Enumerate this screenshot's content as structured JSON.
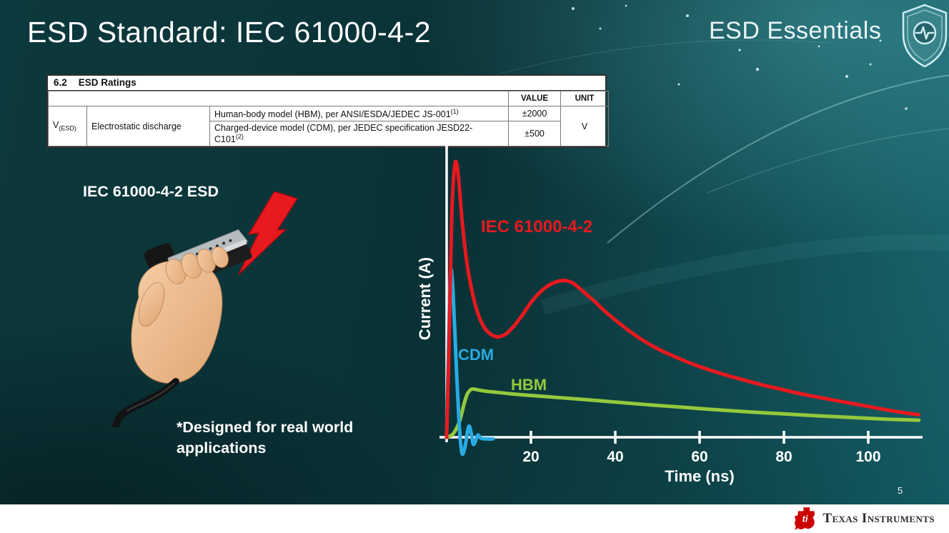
{
  "slide": {
    "title": "ESD Standard: IEC 61000-4-2",
    "series_label": "ESD Essentials",
    "page_number": "5"
  },
  "theme": {
    "background_teal": "#0a3236",
    "accent_teal": "#5fc4cf",
    "title_color": "#ffffff"
  },
  "icons": {
    "header_badge": "shield-with-pulse",
    "footer_logo": "ti-bug",
    "illustration": "hand-holding-hdmi-connector",
    "strike": "red-lightning-bolt"
  },
  "ratings_table": {
    "section_number": "6.2",
    "section_title": "ESD Ratings",
    "value_header": "VALUE",
    "unit_header": "UNIT",
    "symbol_base": "V",
    "symbol_sub": "(ESD)",
    "parameter": "Electrostatic discharge",
    "rows": [
      {
        "desc": "Human-body model (HBM), per ANSI/ESDA/JEDEC JS-001",
        "desc_sup": "(1)",
        "value": "±2000"
      },
      {
        "desc": "Charged-device model (CDM), per JEDEC specification JESD22-C101",
        "desc_sup": "(2)",
        "value": "±500"
      }
    ],
    "unit": "V"
  },
  "left_panel": {
    "connector_label": "IEC 61000-4-2 ESD",
    "note": "*Designed for real world applications"
  },
  "chart_data": {
    "type": "line",
    "title": "",
    "xlabel": "Time (ns)",
    "ylabel": "Current (A)",
    "x_ticks": [
      20,
      40,
      60,
      80,
      100
    ],
    "xlim": [
      0,
      112
    ],
    "ylim": [
      -0.1,
      1.05
    ],
    "grid": false,
    "legend_position": "inline-labels",
    "axis_color": "#ffffff",
    "y_units": "normalized peak current (IEC peak = 1.0)",
    "series": [
      {
        "id": "iec-61000-4-2",
        "name": "IEC 61000-4-2",
        "color": "#e8191f",
        "points": [
          [
            0,
            0
          ],
          [
            0.6,
            0.35
          ],
          [
            1.2,
            0.8
          ],
          [
            1.8,
            0.97
          ],
          [
            2.3,
            1.0
          ],
          [
            2.9,
            0.93
          ],
          [
            3.6,
            0.8
          ],
          [
            4.5,
            0.67
          ],
          [
            5.5,
            0.57
          ],
          [
            7,
            0.47
          ],
          [
            8.5,
            0.41
          ],
          [
            10,
            0.38
          ],
          [
            12,
            0.365
          ],
          [
            14,
            0.375
          ],
          [
            16,
            0.405
          ],
          [
            18,
            0.445
          ],
          [
            20,
            0.49
          ],
          [
            22,
            0.525
          ],
          [
            24,
            0.55
          ],
          [
            26,
            0.565
          ],
          [
            28,
            0.57
          ],
          [
            30,
            0.56
          ],
          [
            32,
            0.535
          ],
          [
            35,
            0.495
          ],
          [
            38,
            0.452
          ],
          [
            42,
            0.402
          ],
          [
            46,
            0.358
          ],
          [
            50,
            0.322
          ],
          [
            55,
            0.287
          ],
          [
            60,
            0.257
          ],
          [
            65,
            0.232
          ],
          [
            70,
            0.21
          ],
          [
            75,
            0.19
          ],
          [
            80,
            0.172
          ],
          [
            85,
            0.155
          ],
          [
            90,
            0.14
          ],
          [
            95,
            0.126
          ],
          [
            100,
            0.112
          ],
          [
            105,
            0.098
          ],
          [
            109,
            0.088
          ],
          [
            112,
            0.082
          ]
        ]
      },
      {
        "id": "cdm",
        "name": "CDM",
        "color": "#29abe2",
        "points": [
          [
            0,
            0
          ],
          [
            0.4,
            0.3
          ],
          [
            0.8,
            0.56
          ],
          [
            1.1,
            0.61
          ],
          [
            1.5,
            0.53
          ],
          [
            1.9,
            0.4
          ],
          [
            2.4,
            0.22
          ],
          [
            2.9,
            0.07
          ],
          [
            3.3,
            -0.02
          ],
          [
            3.7,
            -0.06
          ],
          [
            4.1,
            -0.05
          ],
          [
            4.6,
            -0.015
          ],
          [
            5,
            0.025
          ],
          [
            5.4,
            0.04
          ],
          [
            5.9,
            0.01
          ],
          [
            6.3,
            -0.025
          ],
          [
            6.8,
            -0.015
          ],
          [
            7.4,
            0.008
          ],
          [
            8.2,
            -0.004
          ],
          [
            9.5,
            -0.006
          ],
          [
            11,
            -0.006
          ]
        ]
      },
      {
        "id": "hbm",
        "name": "HBM",
        "color": "#94c83d",
        "points": [
          [
            0,
            0
          ],
          [
            1.5,
            0.012
          ],
          [
            3,
            0.055
          ],
          [
            4.2,
            0.125
          ],
          [
            5,
            0.16
          ],
          [
            6,
            0.175
          ],
          [
            7.5,
            0.172
          ],
          [
            9,
            0.168
          ],
          [
            12,
            0.163
          ],
          [
            16,
            0.157
          ],
          [
            20,
            0.152
          ],
          [
            26,
            0.145
          ],
          [
            32,
            0.138
          ],
          [
            40,
            0.128
          ],
          [
            48,
            0.118
          ],
          [
            56,
            0.109
          ],
          [
            64,
            0.1
          ],
          [
            72,
            0.092
          ],
          [
            80,
            0.085
          ],
          [
            88,
            0.078
          ],
          [
            96,
            0.072
          ],
          [
            104,
            0.066
          ],
          [
            112,
            0.062
          ]
        ]
      }
    ]
  },
  "footer": {
    "brand": "Texas Instruments",
    "logo_color": "#cc0000"
  }
}
